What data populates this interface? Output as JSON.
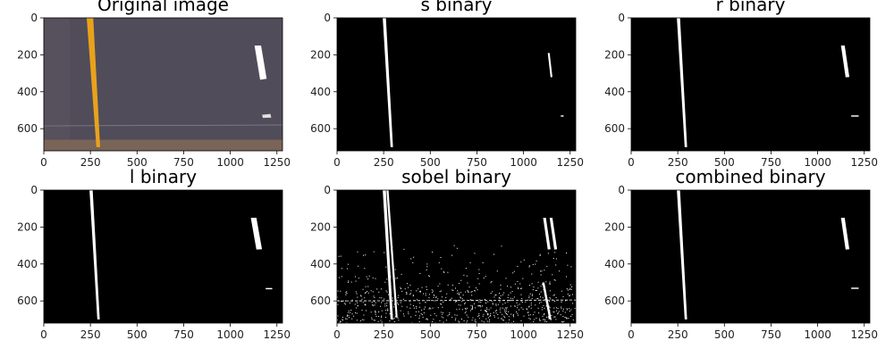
{
  "chart_data": [
    {
      "type": "image",
      "title": "Original image",
      "xlim": [
        0,
        1280
      ],
      "ylim": [
        720,
        0
      ],
      "xticks": [
        0,
        250,
        500,
        750,
        1000,
        1250
      ],
      "yticks": [
        0,
        200,
        400,
        600
      ],
      "background": "#514c59"
    },
    {
      "type": "image",
      "title": "s binary",
      "xlim": [
        0,
        1280
      ],
      "ylim": [
        720,
        0
      ],
      "xticks": [
        0,
        250,
        500,
        750,
        1000,
        1250
      ],
      "yticks": [
        0,
        200,
        400,
        600
      ],
      "background": "#000000"
    },
    {
      "type": "image",
      "title": "r binary",
      "xlim": [
        0,
        1280
      ],
      "ylim": [
        720,
        0
      ],
      "xticks": [
        0,
        250,
        500,
        750,
        1000,
        1250
      ],
      "yticks": [
        0,
        200,
        400,
        600
      ],
      "background": "#000000"
    },
    {
      "type": "image",
      "title": "l binary",
      "xlim": [
        0,
        1280
      ],
      "ylim": [
        720,
        0
      ],
      "xticks": [
        0,
        250,
        500,
        750,
        1000,
        1250
      ],
      "yticks": [
        0,
        200,
        400,
        600
      ],
      "background": "#000000"
    },
    {
      "type": "image",
      "title": "sobel binary",
      "xlim": [
        0,
        1280
      ],
      "ylim": [
        720,
        0
      ],
      "xticks": [
        0,
        250,
        500,
        750,
        1000,
        1250
      ],
      "yticks": [
        0,
        200,
        400,
        600
      ],
      "background": "#000000"
    },
    {
      "type": "image",
      "title": "combined binary",
      "xlim": [
        0,
        1280
      ],
      "ylim": [
        720,
        0
      ],
      "xticks": [
        0,
        250,
        500,
        750,
        1000,
        1250
      ],
      "yticks": [
        0,
        200,
        400,
        600
      ],
      "background": "#000000"
    }
  ],
  "colors": {
    "lane_yellow": "#e8a21c",
    "lane_white": "#ffffff",
    "road_gray": "#514c59",
    "ground_brown": "#7a6458"
  }
}
